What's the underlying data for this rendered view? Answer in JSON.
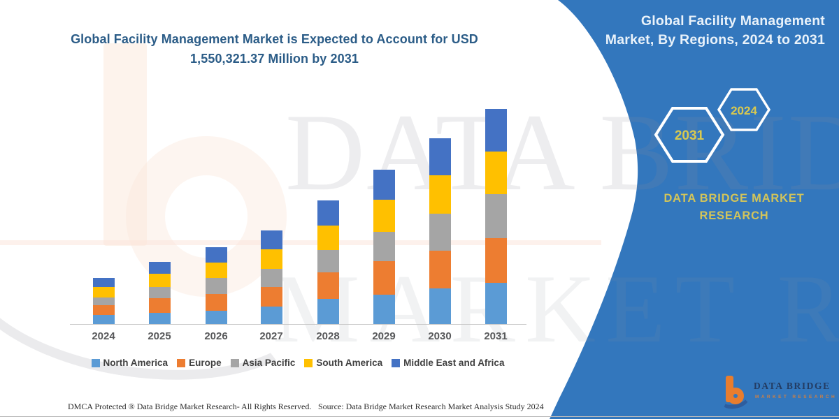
{
  "title": {
    "line1": "Global Facility Management Market is Expected to Account for USD",
    "line2": "1,550,321.37 Million by 2031"
  },
  "side_panel": {
    "heading_line1": "Global Facility Management",
    "heading_line2": "Market, By Regions, 2024 to 2031",
    "hexagon_back_year": "2031",
    "hexagon_front_year": "2024",
    "brand_line1": "DATA BRIDGE MARKET",
    "brand_line2": "RESEARCH",
    "logo_name": "DATA BRIDGE",
    "logo_tagline": "MARKET RESEARCH"
  },
  "watermark": {
    "row1": "DATA BRIDGE",
    "row2": "MARKET RESEARCH"
  },
  "footer": {
    "dmca": "DMCA Protected ® Data Bridge Market Research-  All Rights Reserved.",
    "source": "Source: Data Bridge Market Research  Market Analysis Study 2024"
  },
  "colors": {
    "panel_blue": "#3377bd",
    "title_blue": "#2b5c87",
    "hexagon_text": "#d9c94f",
    "brand_text": "#d2c45a",
    "axis_line": "#c9c9c9",
    "x_label": "#57585a",
    "legend_text": "#404040"
  },
  "chart_data": {
    "type": "bar",
    "stacked": true,
    "title": "Global Facility Management Market, By Regions, 2024 to 2031",
    "unit": "USD Million",
    "values_estimated": true,
    "stated_total_2031": 1550321.37,
    "categories": [
      "2024",
      "2025",
      "2026",
      "2027",
      "2028",
      "2029",
      "2030",
      "2031"
    ],
    "series": [
      {
        "name": "North America",
        "color": "#5b9bd5",
        "values": [
          63400,
          80500,
          97100,
          125800,
          179700,
          212900,
          258200,
          296900
        ]
      },
      {
        "name": "Europe",
        "color": "#ed7d31",
        "values": [
          70500,
          104200,
          117300,
          142400,
          192800,
          238600,
          268800,
          323600
        ]
      },
      {
        "name": "Asia Pacific",
        "color": "#a5a5a5",
        "values": [
          58900,
          83500,
          117800,
          129300,
          159500,
          214400,
          268300,
          313600
        ]
      },
      {
        "name": "South America",
        "color": "#ffc000",
        "values": [
          72000,
          95600,
          112200,
          139400,
          179200,
          230000,
          276800,
          310500
        ]
      },
      {
        "name": "Middle East and Africa",
        "color": "#4472c4",
        "values": [
          67400,
          84100,
          110700,
          138900,
          178200,
          217900,
          265200,
          305721.37
        ]
      }
    ],
    "legend_position": "bottom",
    "y_axis_visible": false,
    "gridlines": false
  }
}
